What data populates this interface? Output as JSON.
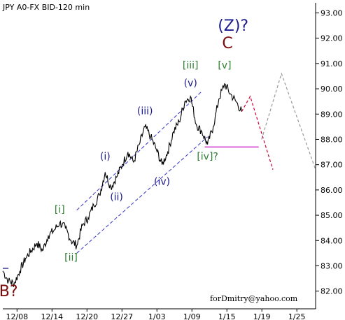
{
  "title": "JPY A0-FX BID-120 min",
  "credit": "forDmitry@yahoo.com",
  "colors": {
    "price": "#000000",
    "roman": "#2e7d32",
    "lower_wave": "#1a1a8c",
    "intermediate": "#1a1a8c",
    "primary": "#7a0a0a",
    "channel": "#3333cc",
    "support": "#cc33cc",
    "projection_main": "#cc0033",
    "projection_alt": "#999999"
  },
  "chart_data": {
    "type": "line",
    "title": "JPY A0-FX BID-120 min",
    "xlabel": "",
    "ylabel": "",
    "x_ticks": [
      "12/08",
      "12/14",
      "12/20",
      "12/27",
      "1/03",
      "1/09",
      "1/15",
      "1/19",
      "1/25"
    ],
    "y_ticks": [
      82.0,
      83.0,
      84.0,
      85.0,
      86.0,
      87.0,
      88.0,
      89.0,
      90.0,
      91.0,
      92.0,
      93.0
    ],
    "ylim": [
      81.3,
      93.4
    ],
    "x_range": [
      0,
      55
    ],
    "series": [
      {
        "kind": "price",
        "x": [
          0,
          1,
          2,
          3,
          4,
          5,
          6,
          7,
          8,
          9,
          10,
          11,
          12,
          13,
          14,
          15,
          16,
          17,
          18,
          19,
          20,
          21,
          22,
          23,
          24,
          25,
          26,
          27,
          28,
          29,
          30,
          31,
          32,
          33,
          34,
          35,
          36,
          37,
          38,
          39,
          40,
          41,
          42
        ],
        "y": [
          82.8,
          82.4,
          82.3,
          82.8,
          83.3,
          83.6,
          83.9,
          83.6,
          84.2,
          84.4,
          84.7,
          84.5,
          84.0,
          83.8,
          84.6,
          84.9,
          85.4,
          85.8,
          86.7,
          86.1,
          86.5,
          87.0,
          87.5,
          87.1,
          87.8,
          88.5,
          88.1,
          87.6,
          87.0,
          87.5,
          88.3,
          88.7,
          89.5,
          89.7,
          88.6,
          88.3,
          87.8,
          88.5,
          89.6,
          90.2,
          89.8,
          89.5,
          89.1
        ]
      }
    ],
    "annotations": [
      {
        "text": "B?",
        "x": 1,
        "y": 81.8,
        "style": "primary"
      },
      {
        "text": "[i]",
        "x": 10,
        "y": 85.1,
        "style": "roman"
      },
      {
        "text": "[ii]",
        "x": 12,
        "y": 83.2,
        "style": "roman"
      },
      {
        "text": "(i)",
        "x": 18,
        "y": 87.2,
        "style": "lower_wave"
      },
      {
        "text": "(ii)",
        "x": 20,
        "y": 85.6,
        "style": "lower_wave"
      },
      {
        "text": "(iii)",
        "x": 25,
        "y": 89.0,
        "style": "lower_wave"
      },
      {
        "text": "(iv)",
        "x": 28,
        "y": 86.2,
        "style": "lower_wave"
      },
      {
        "text": "(v)",
        "x": 33,
        "y": 90.1,
        "style": "lower_wave"
      },
      {
        "text": "[iii]",
        "x": 33,
        "y": 90.8,
        "style": "roman"
      },
      {
        "text": "[iv]?",
        "x": 36,
        "y": 87.2,
        "style": "roman"
      },
      {
        "text": "[v]",
        "x": 39,
        "y": 90.8,
        "style": "roman"
      },
      {
        "text": "C",
        "x": 39.5,
        "y": 91.6,
        "style": "primary"
      },
      {
        "text": "(Z)?",
        "x": 40.5,
        "y": 92.3,
        "style": "intermediate"
      }
    ],
    "channel": {
      "upper": {
        "x": [
          13,
          35
        ],
        "y": [
          85.2,
          89.9
        ]
      },
      "lower": {
        "x": [
          13,
          36
        ],
        "y": [
          83.5,
          88.1
        ]
      }
    },
    "support_level": {
      "x": [
        35.5,
        45
      ],
      "y": [
        87.7,
        87.7
      ]
    },
    "projections": {
      "main": {
        "x": [
          42,
          43.5,
          47.5
        ],
        "y": [
          89.1,
          89.7,
          86.8
        ]
      },
      "alternative": {
        "x": [
          45.5,
          49,
          55
        ],
        "y": [
          88.0,
          90.6,
          86.8
        ]
      }
    },
    "marks": {
      "left_bar": {
        "x": [
          0,
          1
        ],
        "y": [
          82.9,
          82.9
        ]
      }
    }
  }
}
